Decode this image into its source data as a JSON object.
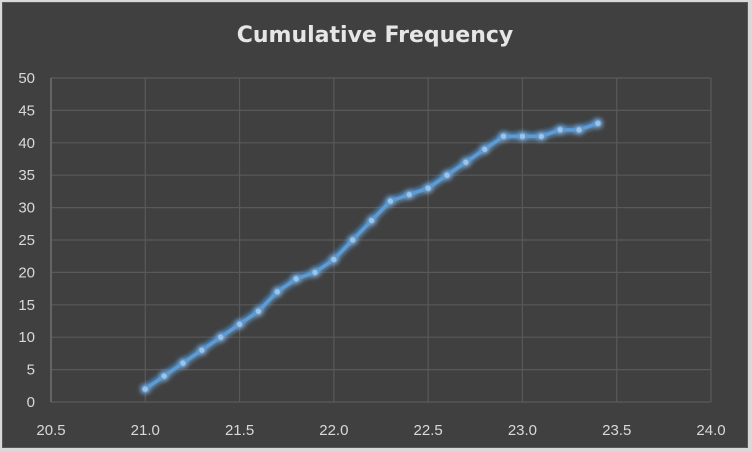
{
  "chart_data": {
    "type": "line",
    "title": "Cumulative Frequency",
    "xlabel": "",
    "ylabel": "",
    "x": [
      21.0,
      21.1,
      21.2,
      21.3,
      21.4,
      21.5,
      21.6,
      21.7,
      21.8,
      21.9,
      22.0,
      22.1,
      22.2,
      22.3,
      22.4,
      22.5,
      22.6,
      22.7,
      22.8,
      22.9,
      23.0,
      23.1,
      23.2,
      23.3,
      23.4
    ],
    "series": [
      {
        "name": "Cumulative Frequency",
        "values": [
          2,
          4,
          6,
          8,
          10,
          12,
          14,
          17,
          19,
          20,
          22,
          25,
          28,
          31,
          32,
          33,
          35,
          37,
          39,
          41,
          41,
          41,
          42,
          42,
          43
        ],
        "color": "#5b9bd5",
        "marker_color": "#9dc3e6"
      }
    ],
    "xlim": [
      20.5,
      24.0
    ],
    "ylim": [
      0,
      50
    ],
    "x_ticks": [
      "20.5",
      "21.0",
      "21.5",
      "22.0",
      "22.5",
      "23.0",
      "23.5",
      "24.0"
    ],
    "y_ticks": [
      "0",
      "5",
      "10",
      "15",
      "20",
      "25",
      "30",
      "35",
      "40",
      "45",
      "50"
    ],
    "grid": true,
    "legend": "none"
  },
  "style": {
    "background": "#404040",
    "grid_color": "#595959",
    "text_color": "#d9d9d9"
  }
}
